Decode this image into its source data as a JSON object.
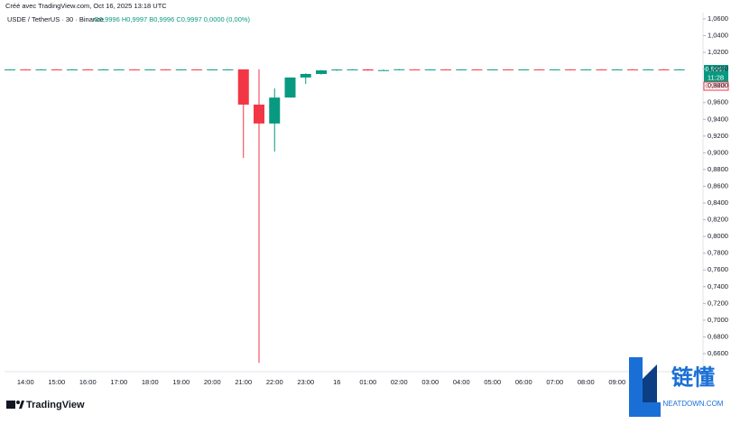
{
  "header": {
    "created": "Créé avec TradingView.com, Oct 16, 2025 13:18 UTC",
    "symbol": "USDE / TetherUS · 30 · Binance",
    "ohlc": "O0,9996 H0,9997 B0,9996 C0,9997 0,0000 (0,00%)"
  },
  "chart_data": {
    "type": "candlestick",
    "categories": [
      null,
      "14:00",
      null,
      "15:00",
      null,
      "16:00",
      null,
      "17:00",
      null,
      "18:00",
      null,
      "19:00",
      null,
      "20:00",
      null,
      "21:00",
      null,
      "22:00",
      null,
      "23:00",
      null,
      "16",
      null,
      "01:00",
      null,
      "02:00",
      null,
      "03:00",
      null,
      "04:00",
      null,
      "05:00",
      null,
      "06:00",
      null,
      "07:00",
      null,
      "08:00",
      null,
      "09:00",
      null,
      null,
      null,
      null
    ],
    "open": [
      0.9996,
      0.9997,
      0.9996,
      0.9997,
      0.9996,
      0.9997,
      0.9996,
      0.9996,
      0.9997,
      0.9996,
      0.9997,
      0.9996,
      0.9997,
      0.9996,
      0.9996,
      0.9997,
      0.9576,
      0.935,
      0.966,
      0.99,
      0.9942,
      0.9985,
      0.9995,
      0.9997,
      0.9984,
      0.9988,
      0.9997,
      0.9996,
      0.9997,
      0.9996,
      0.9997,
      0.9996,
      0.9997,
      0.9996,
      0.9997,
      0.9996,
      0.9997,
      0.9996,
      0.9997,
      0.9996,
      0.9997,
      0.9996,
      0.9997,
      0.9996
    ],
    "high": [
      0.9998,
      0.9998,
      0.9998,
      0.9998,
      0.9998,
      0.9998,
      0.9998,
      0.9998,
      0.9998,
      0.9998,
      0.9998,
      0.9998,
      0.9998,
      0.9998,
      0.9998,
      0.9998,
      0.9997,
      0.977,
      0.99,
      0.995,
      0.999,
      0.9998,
      0.9999,
      0.9999,
      0.9995,
      0.9999,
      0.9998,
      0.9998,
      0.9998,
      0.9998,
      0.9998,
      0.9998,
      0.9998,
      0.9998,
      0.9998,
      0.9998,
      0.9998,
      0.9998,
      0.9998,
      0.9998,
      0.9998,
      0.9998,
      0.9998,
      0.9998
    ],
    "low": [
      0.9995,
      0.9995,
      0.9995,
      0.9995,
      0.9995,
      0.9995,
      0.9995,
      0.9995,
      0.9995,
      0.9995,
      0.9995,
      0.9995,
      0.9995,
      0.9995,
      0.9995,
      0.894,
      0.649,
      0.9015,
      0.966,
      0.9823,
      0.9935,
      0.998,
      0.999,
      0.998,
      0.998,
      0.9985,
      0.9995,
      0.9995,
      0.9995,
      0.9995,
      0.9995,
      0.9995,
      0.9995,
      0.9995,
      0.9995,
      0.9995,
      0.9995,
      0.9995,
      0.9995,
      0.9995,
      0.9995,
      0.9995,
      0.9995,
      0.9995
    ],
    "close": [
      0.9997,
      0.9996,
      0.9997,
      0.9996,
      0.9997,
      0.9996,
      0.9997,
      0.9997,
      0.9996,
      0.9997,
      0.9996,
      0.9997,
      0.9996,
      0.9997,
      0.9997,
      0.9576,
      0.935,
      0.966,
      0.99,
      0.9942,
      0.9985,
      0.9995,
      0.9997,
      0.9984,
      0.9988,
      0.9998,
      0.9996,
      0.9997,
      0.9996,
      0.9997,
      0.9996,
      0.9997,
      0.9996,
      0.9997,
      0.9996,
      0.9997,
      0.9996,
      0.9997,
      0.9996,
      0.9997,
      0.9996,
      0.9997,
      0.9996,
      0.9997
    ],
    "up_color": "#089981",
    "down_color": "#f23645",
    "ylim": [
      0.6406,
      1.0675
    ],
    "yticks": [
      {
        "value": 1.06,
        "label": "1,0600"
      },
      {
        "value": 1.04,
        "label": "1,0400"
      },
      {
        "value": 1.02,
        "label": "1,0200"
      },
      {
        "value": 1.0,
        "label": "1,0000"
      },
      {
        "value": 0.98,
        "label": "0,9800"
      },
      {
        "value": 0.96,
        "label": "0,9600"
      },
      {
        "value": 0.94,
        "label": "0,9400"
      },
      {
        "value": 0.92,
        "label": "0,9200"
      },
      {
        "value": 0.9,
        "label": "0,9000"
      },
      {
        "value": 0.88,
        "label": "0,8800"
      },
      {
        "value": 0.86,
        "label": "0,8600"
      },
      {
        "value": 0.84,
        "label": "0,8400"
      },
      {
        "value": 0.82,
        "label": "0,8200"
      },
      {
        "value": 0.8,
        "label": "0,8000"
      },
      {
        "value": 0.78,
        "label": "0,7800"
      },
      {
        "value": 0.76,
        "label": "0,7600"
      },
      {
        "value": 0.74,
        "label": "0,7400"
      },
      {
        "value": 0.72,
        "label": "0,7200"
      },
      {
        "value": 0.7,
        "label": "0,7000"
      },
      {
        "value": 0.68,
        "label": "0,6800"
      },
      {
        "value": 0.66,
        "label": "0,6600"
      }
    ],
    "price_labels": {
      "last": "0,9997",
      "countdown": "11:28",
      "prev": "0,9988"
    }
  },
  "footer": {
    "logo": "TradingView",
    "watermark": "链懂",
    "watermark_site": "NEATDOWN.COM"
  }
}
